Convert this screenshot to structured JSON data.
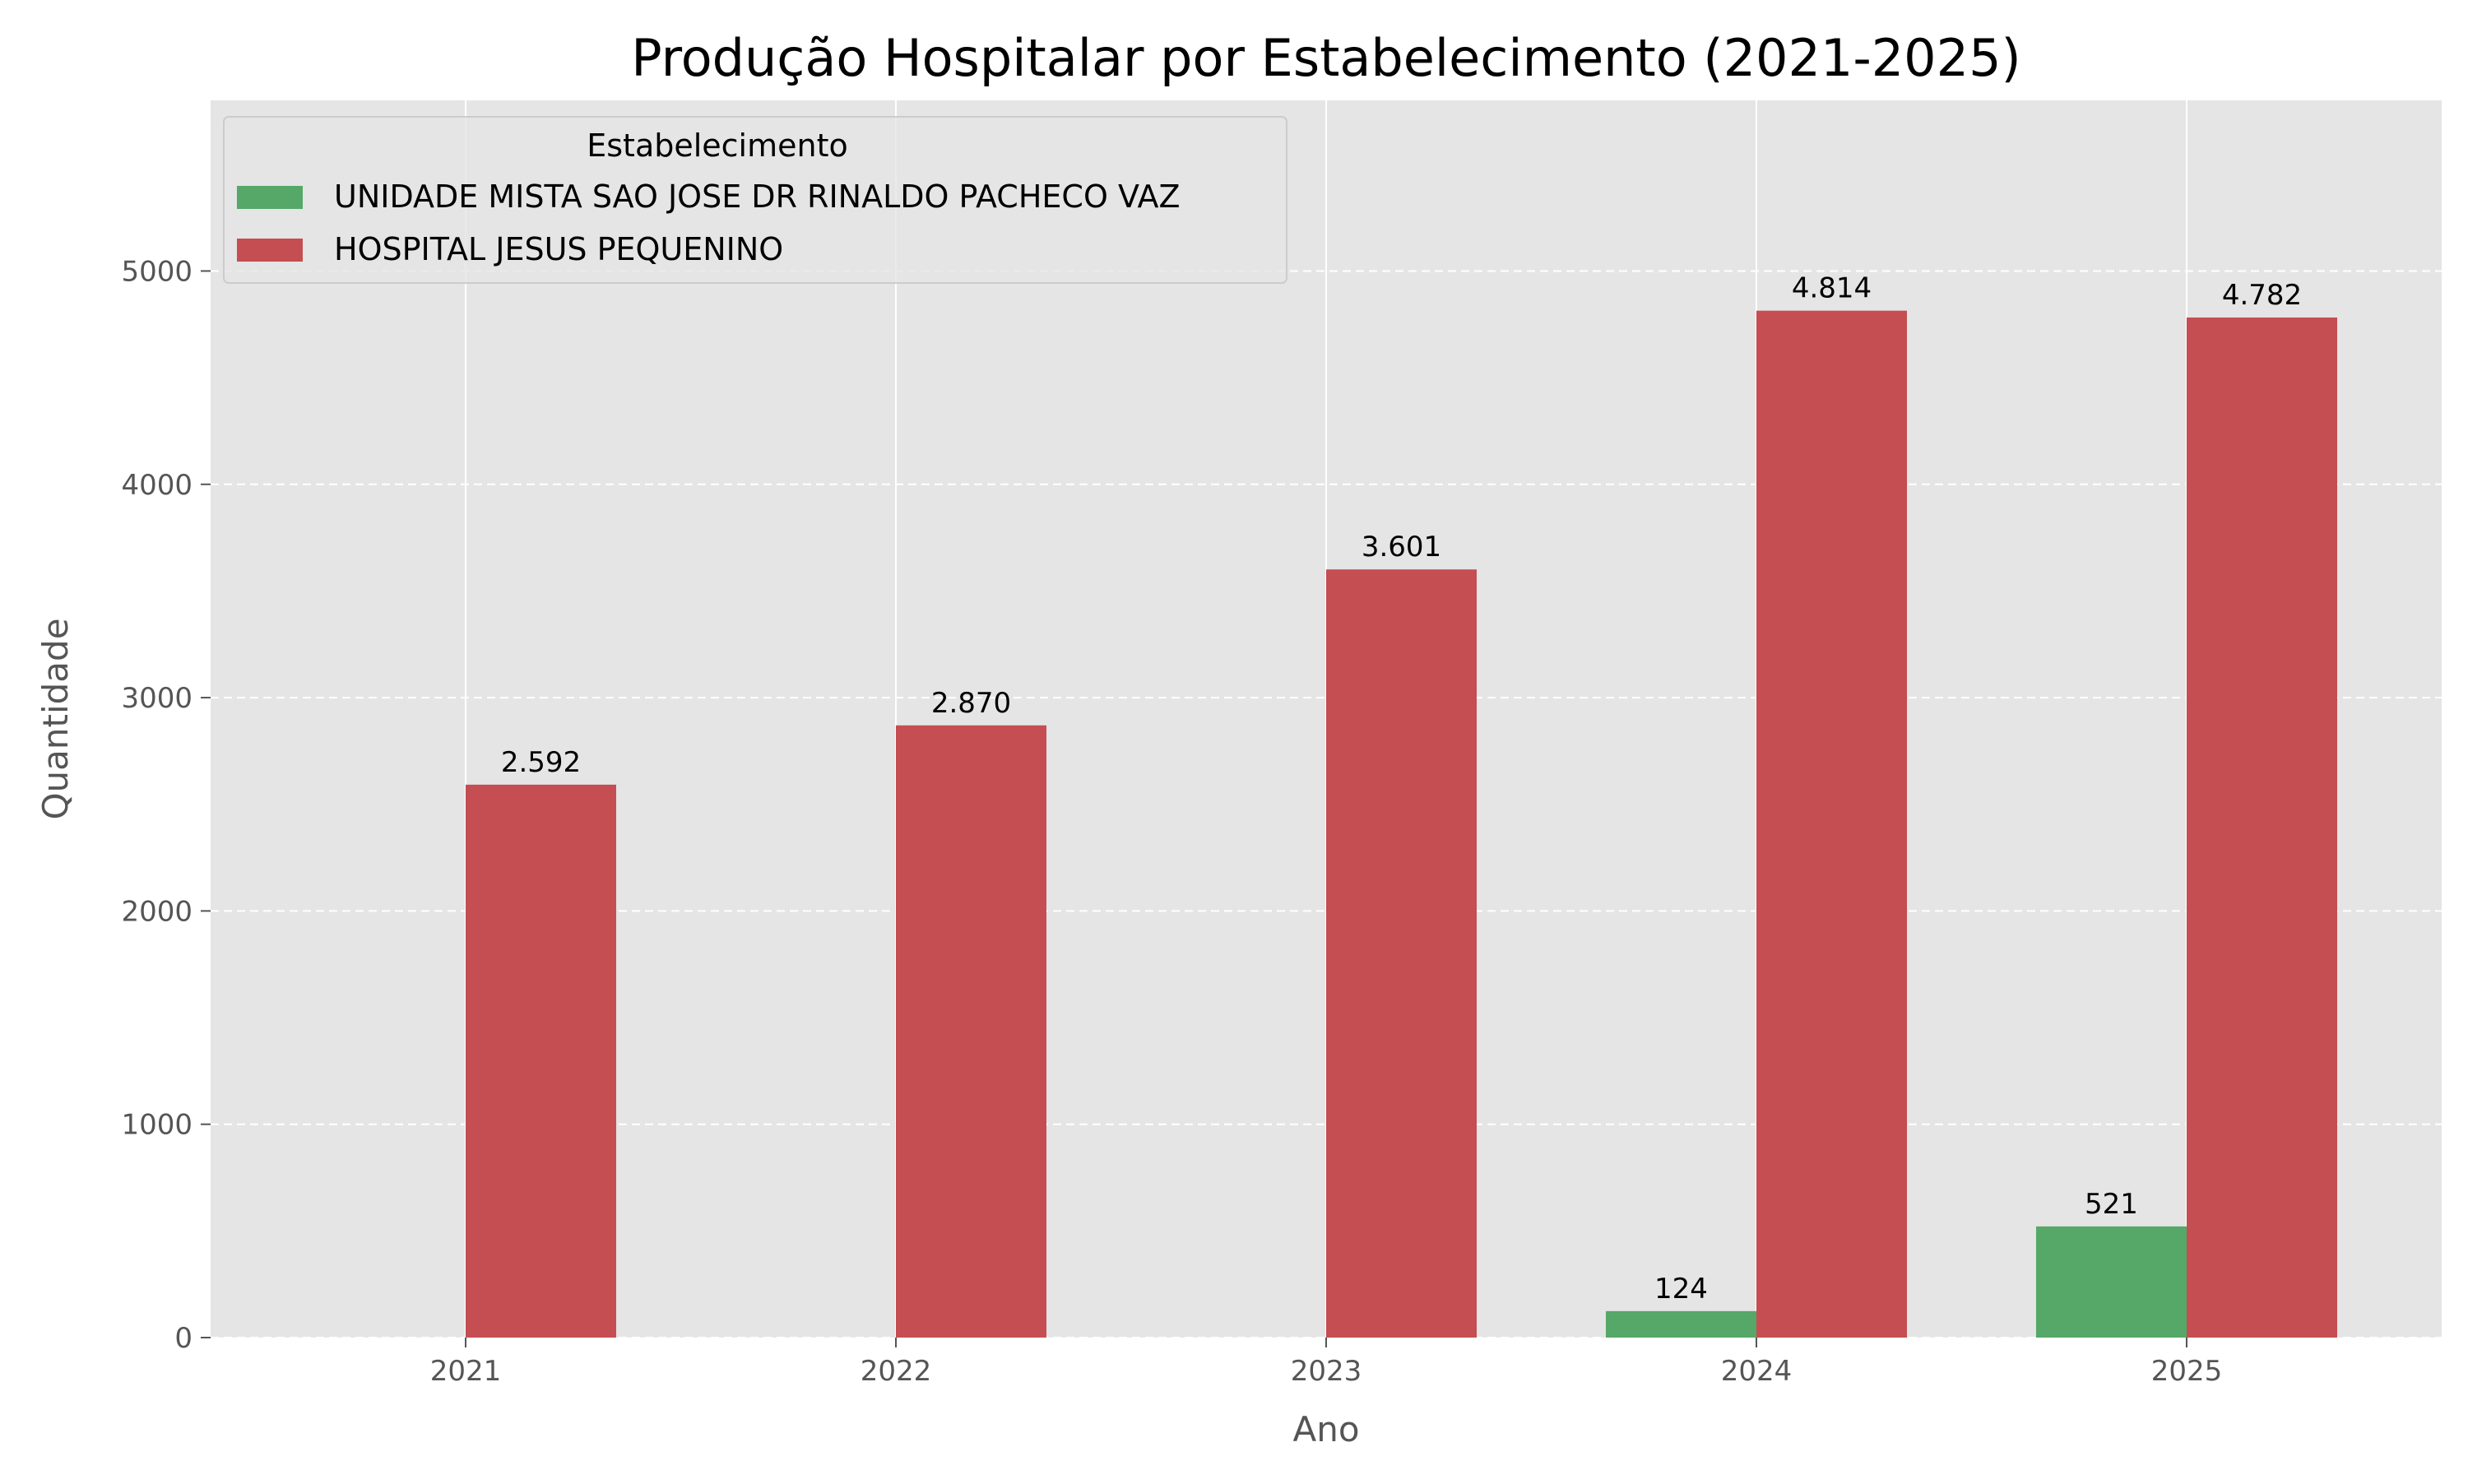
{
  "chart_data": {
    "type": "bar",
    "title": "Produção Hospitalar por Estabelecimento (2021-2025)",
    "xlabel": "Ano",
    "ylabel": "Quantidade",
    "categories": [
      "2021",
      "2022",
      "2023",
      "2024",
      "2025"
    ],
    "series": [
      {
        "name": "UNIDADE MISTA SAO JOSE DR RINALDO PACHECO VAZ",
        "color": "#55a868",
        "values": [
          0,
          0,
          0,
          124,
          521
        ],
        "labels": [
          "",
          "",
          "",
          "124",
          "521"
        ]
      },
      {
        "name": "HOSPITAL JESUS PEQUENINO",
        "color": "#c44e52",
        "values": [
          2592,
          2870,
          3601,
          4814,
          4782
        ],
        "labels": [
          "2.592",
          "2.870",
          "3.601",
          "4.814",
          "4.782"
        ]
      }
    ],
    "ylim": [
      0,
      5800
    ],
    "yticks": [
      0,
      1000,
      2000,
      3000,
      4000,
      5000
    ],
    "legend": {
      "title": "Estabelecimento",
      "placement": "top-left"
    },
    "grid": {
      "x": "solid",
      "y": "dashed"
    },
    "background_color": "#e5e5e5"
  }
}
